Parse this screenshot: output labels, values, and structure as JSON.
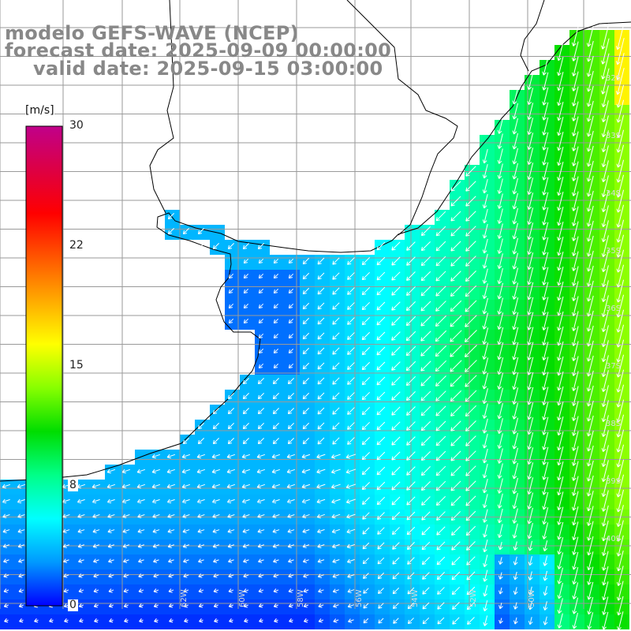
{
  "title": {
    "line1": "modelo GEFS-WAVE (NCEP)",
    "line2": "forecast date: 2025-09-09 00:00:00",
    "line3": "valid date: 2025-09-15 03:00:00"
  },
  "colorbar": {
    "unit": "[m/s]",
    "ticks": [
      "30",
      "22",
      "15",
      "8",
      "0"
    ],
    "tick_values": [
      30,
      22,
      15,
      8,
      0
    ],
    "min": 0,
    "max": 30,
    "colors": [
      "#0000ff",
      "#0099ff",
      "#00ffff",
      "#00ff88",
      "#00dd00",
      "#88ff00",
      "#ffff00",
      "#ffaa00",
      "#ff5500",
      "#ff0000",
      "#dd0044",
      "#c0008a"
    ]
  },
  "grid": {
    "lat_labels": [
      "32S",
      "33S",
      "34S",
      "35S",
      "36S",
      "37S",
      "38S",
      "39S",
      "40S"
    ],
    "lon_labels": [
      "62W",
      "60W",
      "58W",
      "56W",
      "54W",
      "52W",
      "50W"
    ]
  },
  "map": {
    "variable": "wind speed and direction",
    "land_color": "#ffffff",
    "coastline_color": "#000000",
    "gridline_color": "#9a9a9a",
    "arrow_color": "#ffffff"
  }
}
